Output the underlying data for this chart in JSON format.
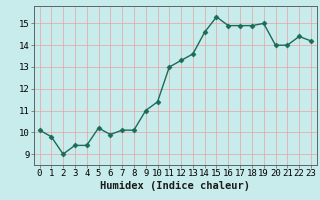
{
  "xlabel": "Humidex (Indice chaleur)",
  "x": [
    0,
    1,
    2,
    3,
    4,
    5,
    6,
    7,
    8,
    9,
    10,
    11,
    12,
    13,
    14,
    15,
    16,
    17,
    18,
    19,
    20,
    21,
    22,
    23
  ],
  "y": [
    10.1,
    9.8,
    9.0,
    9.4,
    9.4,
    10.2,
    9.9,
    10.1,
    10.1,
    11.0,
    11.4,
    13.0,
    13.3,
    13.6,
    14.6,
    15.3,
    14.9,
    14.9,
    14.9,
    15.0,
    14.0,
    14.0,
    14.4,
    14.2
  ],
  "line_color": "#1a6b5a",
  "bg_color": "#c8ecec",
  "grid_color": "#e8a0a0",
  "ylim": [
    8.5,
    15.8
  ],
  "xlim": [
    -0.5,
    23.5
  ],
  "yticks": [
    9,
    10,
    11,
    12,
    13,
    14,
    15
  ],
  "xticks": [
    0,
    1,
    2,
    3,
    4,
    5,
    6,
    7,
    8,
    9,
    10,
    11,
    12,
    13,
    14,
    15,
    16,
    17,
    18,
    19,
    20,
    21,
    22,
    23
  ],
  "tick_fontsize": 6.5,
  "xlabel_fontsize": 7.5,
  "marker": "D",
  "markersize": 2.5,
  "linewidth": 1.0
}
